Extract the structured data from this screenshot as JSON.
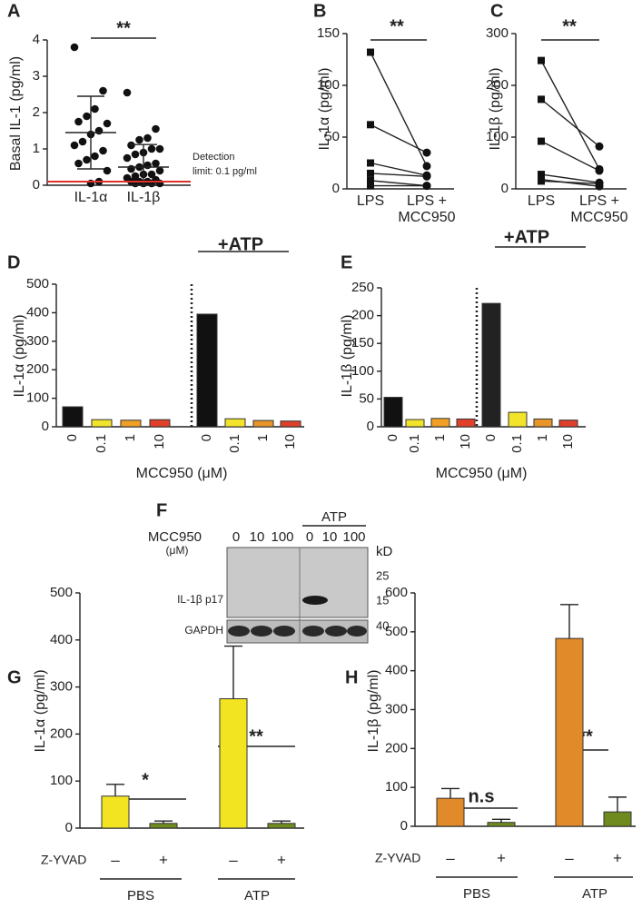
{
  "chart_data": [
    {
      "panel": "A",
      "type": "scatter",
      "ylabel": "Basal IL-1 (pg/ml)",
      "categories": [
        "IL-1α",
        "IL-1β"
      ],
      "points": [
        [
          3.8,
          2.6,
          2.1,
          1.9,
          1.75,
          1.7,
          1.5,
          1.4,
          1.2,
          1.1,
          0.95,
          0.8,
          0.7,
          0.6,
          0.4,
          0.1,
          0.05
        ],
        [
          2.55,
          1.55,
          1.3,
          1.25,
          1.1,
          1.0,
          1.0,
          0.9,
          0.85,
          0.75,
          0.6,
          0.55,
          0.5,
          0.45,
          0.4,
          0.3,
          0.3,
          0.25,
          0.2,
          0.15,
          0.1,
          0.1,
          0.1,
          0.05,
          0.05,
          0.05,
          0.05
        ]
      ],
      "mean": [
        1.45,
        0.5
      ],
      "sd": [
        1.0,
        0.62
      ],
      "threshold": 0.1,
      "threshold_color": "#e0302a",
      "annotations": [
        "**",
        "Detection",
        "limit: 0.1 pg/ml"
      ],
      "ylim": [
        0,
        4
      ],
      "yticks": [
        0,
        1,
        2,
        3,
        4
      ]
    },
    {
      "panel": "B",
      "type": "line",
      "ylabel": "IL-1α  (pg/ml)",
      "categories": [
        "LPS",
        [
          "LPS +",
          "MCC950"
        ]
      ],
      "pairs": [
        [
          132,
          22
        ],
        [
          62,
          35
        ],
        [
          25,
          13
        ],
        [
          15,
          12
        ],
        [
          8,
          3
        ],
        [
          3,
          3
        ]
      ],
      "annotations": [
        "**"
      ],
      "ylim": [
        0,
        150
      ],
      "yticks": [
        0,
        50,
        100,
        150
      ]
    },
    {
      "panel": "C",
      "type": "line",
      "ylabel": "IL-1β  (pg/ml)",
      "categories": [
        "LPS",
        [
          "LPS +",
          "MCC950"
        ]
      ],
      "pairs": [
        [
          248,
          38
        ],
        [
          173,
          82
        ],
        [
          92,
          35
        ],
        [
          28,
          12
        ],
        [
          18,
          5
        ],
        [
          15,
          10
        ]
      ],
      "annotations": [
        "**"
      ],
      "ylim": [
        0,
        300
      ],
      "yticks": [
        0,
        100,
        200,
        300
      ]
    },
    {
      "panel": "D",
      "type": "bar",
      "ylabel": "IL-1α (pg/ml)",
      "xlabel": "MCC950 (μM)",
      "categories": [
        "0",
        "0.1",
        "1",
        "10",
        "0",
        "0.1",
        "1",
        "10"
      ],
      "values": [
        70,
        25,
        23,
        25,
        395,
        28,
        22,
        20
      ],
      "colors": [
        "#111111",
        "#f2e42a",
        "#f0a024",
        "#e0402a",
        "#111111",
        "#f2e42a",
        "#e8962a",
        "#e0402a"
      ],
      "annotations": [
        "+ATP"
      ],
      "ylim": [
        0,
        500
      ],
      "yticks": [
        0,
        100,
        200,
        300,
        400,
        500
      ]
    },
    {
      "panel": "E",
      "type": "bar",
      "ylabel": "IL-1β (pg/ml)",
      "xlabel": "MCC950 (μM)",
      "categories": [
        "0",
        "0.1",
        "1",
        "10",
        "0",
        "0.1",
        "1",
        "10"
      ],
      "values": [
        53,
        13,
        15,
        14,
        222,
        26,
        14,
        12
      ],
      "colors": [
        "#111111",
        "#f2e42a",
        "#f0a024",
        "#e0402a",
        "#222222",
        "#f2e42a",
        "#e8962a",
        "#e0402a"
      ],
      "annotations": [
        "+ATP"
      ],
      "ylim": [
        0,
        250
      ],
      "yticks": [
        0,
        50,
        100,
        150,
        200,
        250
      ]
    },
    {
      "panel": "G",
      "type": "bar",
      "ylabel": "IL-1α  (pg/ml)",
      "categories": [
        "–",
        "+",
        "–",
        "+"
      ],
      "values": [
        68,
        10,
        275,
        10
      ],
      "errors": [
        25,
        5,
        112,
        5
      ],
      "colors": [
        "#f2e421",
        "#6f8a1e",
        "#f2e421",
        "#6f8a1e"
      ],
      "row_label": "Z-YVAD",
      "groups": [
        "PBS",
        "ATP"
      ],
      "annotations": [
        "*",
        "**"
      ],
      "ylim": [
        0,
        500
      ],
      "yticks": [
        0,
        100,
        200,
        300,
        400,
        500
      ]
    },
    {
      "panel": "H",
      "type": "bar",
      "ylabel": "IL-1β  (pg/ml)",
      "categories": [
        "–",
        "+",
        "–",
        "+"
      ],
      "values": [
        72,
        10,
        483,
        37
      ],
      "errors": [
        25,
        8,
        87,
        38
      ],
      "colors": [
        "#e08a2a",
        "#6f8a1e",
        "#e08a2a",
        "#6f8a1e"
      ],
      "row_label": "Z-YVAD",
      "groups": [
        "PBS",
        "ATP"
      ],
      "annotations": [
        "n.s",
        "**"
      ],
      "ylim": [
        0,
        600
      ],
      "yticks": [
        0,
        100,
        200,
        300,
        400,
        500,
        600
      ]
    }
  ],
  "blot": {
    "panel": "F",
    "title": "MCC950",
    "unit": "(μM)",
    "lanes": [
      "0",
      "10",
      "100",
      "0",
      "10",
      "100"
    ],
    "group": "ATP",
    "rows": [
      "IL-1β p17",
      "GAPDH"
    ],
    "marker_unit": "kD",
    "markers": [
      "25",
      "15",
      "40"
    ]
  }
}
